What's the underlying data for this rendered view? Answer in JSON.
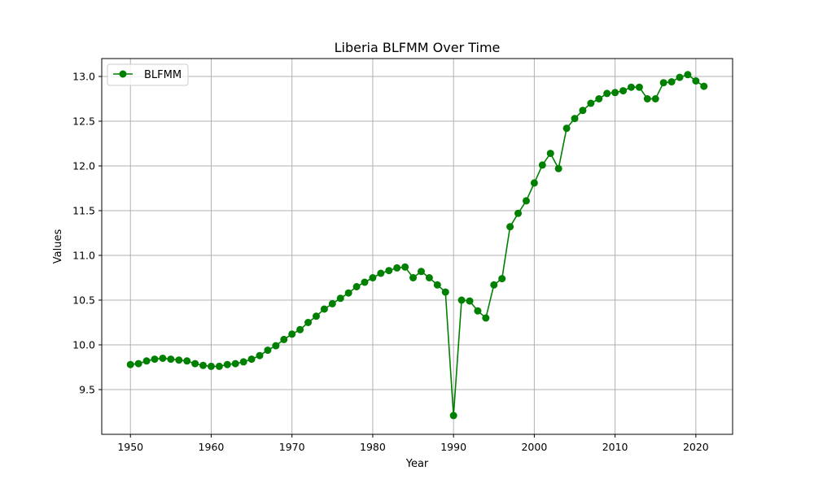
{
  "chart_data": {
    "type": "line",
    "title": "Liberia BLFMM Over Time",
    "xlabel": "Year",
    "ylabel": "Values",
    "xlim": [
      1946.45,
      2024.55
    ],
    "ylim": [
      9.0,
      13.2
    ],
    "xticks": [
      1950,
      1960,
      1970,
      1980,
      1990,
      2000,
      2010,
      2020
    ],
    "yticks": [
      9.5,
      10.0,
      10.5,
      11.0,
      11.5,
      12.0,
      12.5,
      13.0
    ],
    "grid": true,
    "legend_position": "top-left",
    "series": [
      {
        "name": "BLFMM",
        "color": "#008000",
        "marker": "circle",
        "x": [
          1950,
          1951,
          1952,
          1953,
          1954,
          1955,
          1956,
          1957,
          1958,
          1959,
          1960,
          1961,
          1962,
          1963,
          1964,
          1965,
          1966,
          1967,
          1968,
          1969,
          1970,
          1971,
          1972,
          1973,
          1974,
          1975,
          1976,
          1977,
          1978,
          1979,
          1980,
          1981,
          1982,
          1983,
          1984,
          1985,
          1986,
          1987,
          1988,
          1989,
          1990,
          1991,
          1992,
          1993,
          1994,
          1995,
          1996,
          1997,
          1998,
          1999,
          2000,
          2001,
          2002,
          2003,
          2004,
          2005,
          2006,
          2007,
          2008,
          2009,
          2010,
          2011,
          2012,
          2013,
          2014,
          2015,
          2016,
          2017,
          2018,
          2019,
          2020,
          2021
        ],
        "values": [
          9.78,
          9.79,
          9.82,
          9.84,
          9.85,
          9.84,
          9.83,
          9.82,
          9.79,
          9.77,
          9.76,
          9.76,
          9.78,
          9.79,
          9.81,
          9.84,
          9.88,
          9.94,
          9.99,
          10.06,
          10.12,
          10.17,
          10.25,
          10.32,
          10.4,
          10.46,
          10.52,
          10.58,
          10.65,
          10.7,
          10.75,
          10.8,
          10.83,
          10.86,
          10.87,
          10.75,
          10.82,
          10.75,
          10.67,
          10.59,
          9.21,
          10.5,
          10.49,
          10.38,
          10.3,
          10.67,
          10.74,
          11.32,
          11.47,
          11.61,
          11.81,
          12.01,
          12.14,
          11.97,
          12.42,
          12.53,
          12.62,
          12.7,
          12.75,
          12.81,
          12.82,
          12.84,
          12.88,
          12.88,
          12.75,
          12.75,
          12.93,
          12.94,
          12.99,
          13.02,
          12.95,
          12.89
        ]
      }
    ]
  }
}
